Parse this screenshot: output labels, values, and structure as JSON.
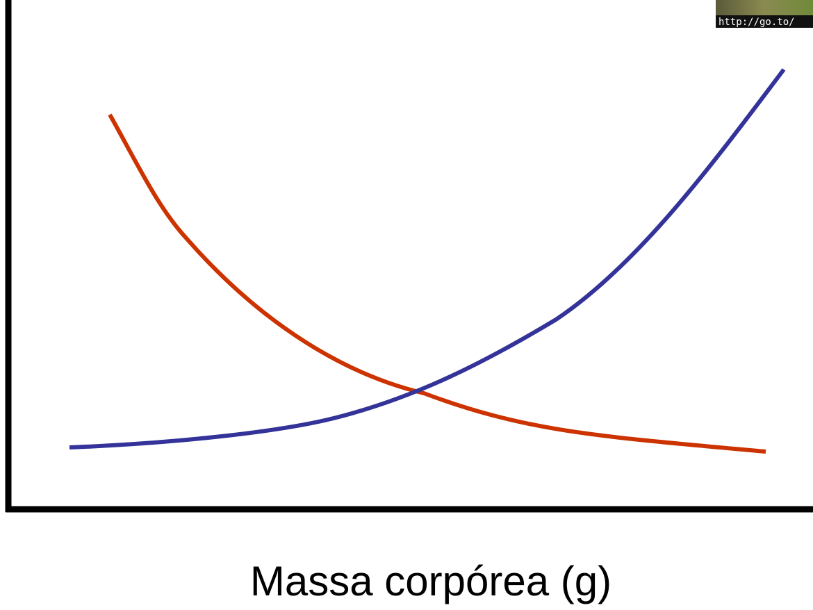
{
  "axis_label": "Massa corpórea (g)",
  "watermark": "http://go.to/"
}
